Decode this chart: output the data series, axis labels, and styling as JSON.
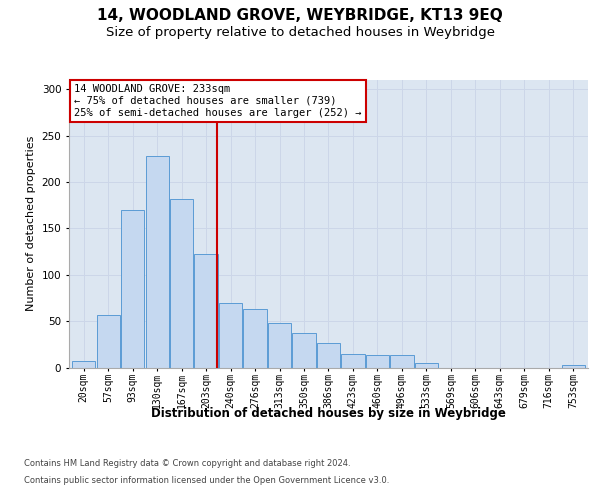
{
  "title": "14, WOODLAND GROVE, WEYBRIDGE, KT13 9EQ",
  "subtitle": "Size of property relative to detached houses in Weybridge",
  "xlabel": "Distribution of detached houses by size in Weybridge",
  "ylabel": "Number of detached properties",
  "bin_labels": [
    "20sqm",
    "57sqm",
    "93sqm",
    "130sqm",
    "167sqm",
    "203sqm",
    "240sqm",
    "276sqm",
    "313sqm",
    "350sqm",
    "386sqm",
    "423sqm",
    "460sqm",
    "496sqm",
    "533sqm",
    "569sqm",
    "606sqm",
    "643sqm",
    "679sqm",
    "716sqm",
    "753sqm"
  ],
  "bar_heights": [
    7,
    57,
    170,
    228,
    182,
    122,
    70,
    63,
    48,
    37,
    26,
    15,
    13,
    13,
    5,
    0,
    0,
    0,
    0,
    0,
    3
  ],
  "bar_color": "#c5d8f0",
  "bar_edge_color": "#5b9bd5",
  "grid_color": "#ccd6e8",
  "background_color": "#dce6f1",
  "vline_x": 5.45,
  "vline_color": "#cc0000",
  "annotation_line1": "14 WOODLAND GROVE: 233sqm",
  "annotation_line2": "← 75% of detached houses are smaller (739)",
  "annotation_line3": "25% of semi-detached houses are larger (252) →",
  "annotation_box_color": "#ffffff",
  "annotation_box_edge_color": "#cc0000",
  "footer_line1": "Contains HM Land Registry data © Crown copyright and database right 2024.",
  "footer_line2": "Contains public sector information licensed under the Open Government Licence v3.0.",
  "ylim_max": 310,
  "title_fontsize": 11,
  "subtitle_fontsize": 9.5,
  "ylabel_fontsize": 8,
  "xlabel_fontsize": 8.5,
  "tick_fontsize": 7,
  "annotation_fontsize": 7.5,
  "footer_fontsize": 6
}
